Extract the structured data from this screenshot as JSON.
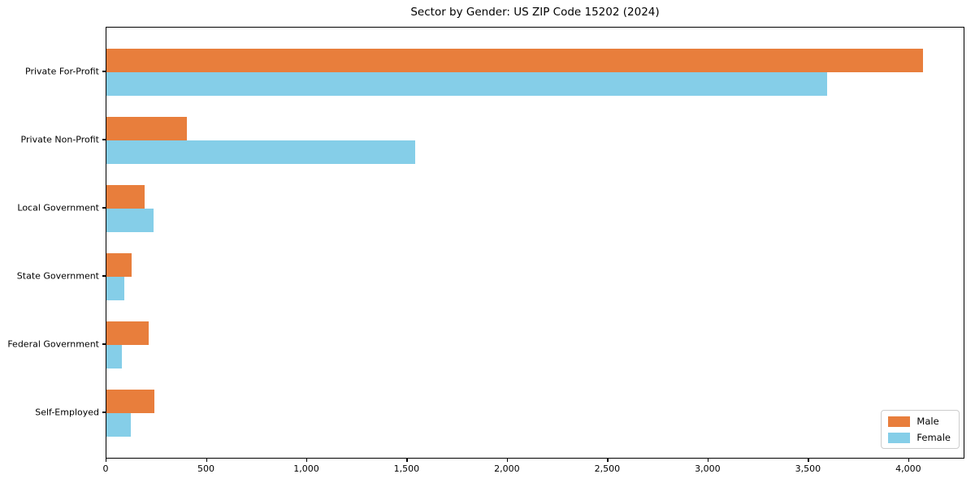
{
  "chart_data": {
    "type": "bar",
    "orientation": "horizontal",
    "title": "Sector by Gender: US ZIP Code 15202 (2024)",
    "categories": [
      "Private For-Profit",
      "Private Non-Profit",
      "Local Government",
      "State Government",
      "Federal Government",
      "Self-Employed"
    ],
    "series": [
      {
        "name": "Male",
        "color": "#E87E3C",
        "values": [
          4070,
          400,
          190,
          125,
          210,
          240
        ]
      },
      {
        "name": "Female",
        "color": "#85CEE8",
        "values": [
          3590,
          1540,
          235,
          90,
          75,
          120
        ]
      }
    ],
    "xlabel": "",
    "ylabel": "",
    "xlim": [
      0,
      4280
    ],
    "xticks": [
      0,
      500,
      1000,
      1500,
      2000,
      2500,
      3000,
      3500,
      4000
    ],
    "xtick_labels": [
      "0",
      "500",
      "1,000",
      "1,500",
      "2,000",
      "2,500",
      "3,000",
      "3,500",
      "4,000"
    ],
    "grid": false,
    "legend": {
      "position": "lower right",
      "entries": [
        "Male",
        "Female"
      ]
    }
  }
}
